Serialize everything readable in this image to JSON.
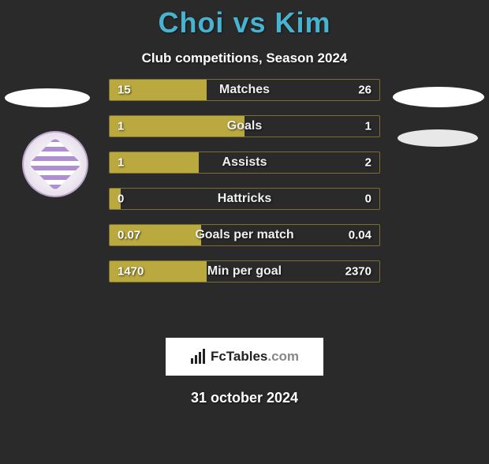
{
  "title_left": "Choi",
  "title_vs": "vs",
  "title_right": "Kim",
  "subtitle": "Club competitions, Season 2024",
  "colors": {
    "title": "#47b3d1",
    "text": "#ffffff",
    "bar_fill": "#b9a93f",
    "bar_border": "#7a6f2f",
    "background": "#2a2a2a",
    "brand_bg": "#ffffff"
  },
  "bars": [
    {
      "label": "Matches",
      "left": "15",
      "right": "26",
      "fill_pct": 36
    },
    {
      "label": "Goals",
      "left": "1",
      "right": "1",
      "fill_pct": 50
    },
    {
      "label": "Assists",
      "left": "1",
      "right": "2",
      "fill_pct": 33
    },
    {
      "label": "Hattricks",
      "left": "0",
      "right": "0",
      "fill_pct": 4
    },
    {
      "label": "Goals per match",
      "left": "0.07",
      "right": "0.04",
      "fill_pct": 34
    },
    {
      "label": "Min per goal",
      "left": "1470",
      "right": "2370",
      "fill_pct": 36
    }
  ],
  "brand": {
    "text_bold": "FcTables",
    "text_light": ".com"
  },
  "date": "31 october 2024"
}
